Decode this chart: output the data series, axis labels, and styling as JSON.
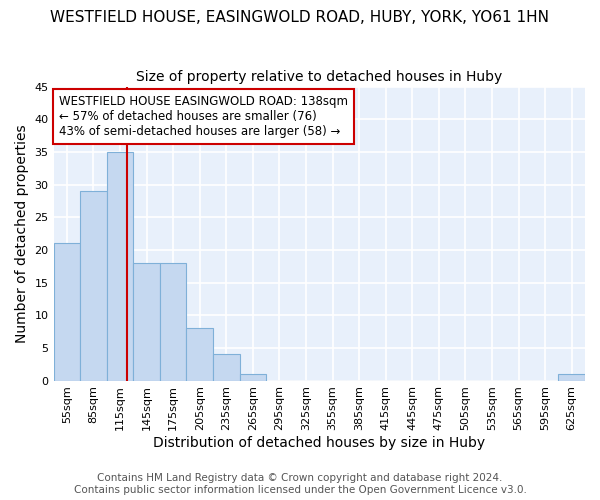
{
  "title1": "WESTFIELD HOUSE, EASINGWOLD ROAD, HUBY, YORK, YO61 1HN",
  "title2": "Size of property relative to detached houses in Huby",
  "xlabel": "Distribution of detached houses by size in Huby",
  "ylabel": "Number of detached properties",
  "bin_edges": [
    55,
    85,
    115,
    145,
    175,
    205,
    235,
    265,
    295,
    325,
    355,
    385,
    415,
    445,
    475,
    505,
    535,
    565,
    595,
    625,
    655
  ],
  "counts": [
    21,
    29,
    35,
    18,
    18,
    8,
    4,
    1,
    0,
    0,
    0,
    0,
    0,
    0,
    0,
    0,
    0,
    0,
    0,
    1
  ],
  "bar_color": "#c5d8f0",
  "bar_edge_color": "#7fb0d8",
  "red_line_x": 138,
  "annotation_line1": "WESTFIELD HOUSE EASINGWOLD ROAD: 138sqm",
  "annotation_line2": "← 57% of detached houses are smaller (76)",
  "annotation_line3": "43% of semi-detached houses are larger (58) →",
  "annotation_box_color": "#ffffff",
  "annotation_box_edge": "#cc0000",
  "footer1": "Contains HM Land Registry data © Crown copyright and database right 2024.",
  "footer2": "Contains public sector information licensed under the Open Government Licence v3.0.",
  "ylim": [
    0,
    45
  ],
  "yticks": [
    0,
    5,
    10,
    15,
    20,
    25,
    30,
    35,
    40,
    45
  ],
  "background_color": "#e8f0fb",
  "grid_color": "#ffffff",
  "title1_fontsize": 11,
  "title2_fontsize": 10,
  "axis_label_fontsize": 10,
  "tick_fontsize": 8,
  "annotation_fontsize": 8.5,
  "footer_fontsize": 7.5
}
